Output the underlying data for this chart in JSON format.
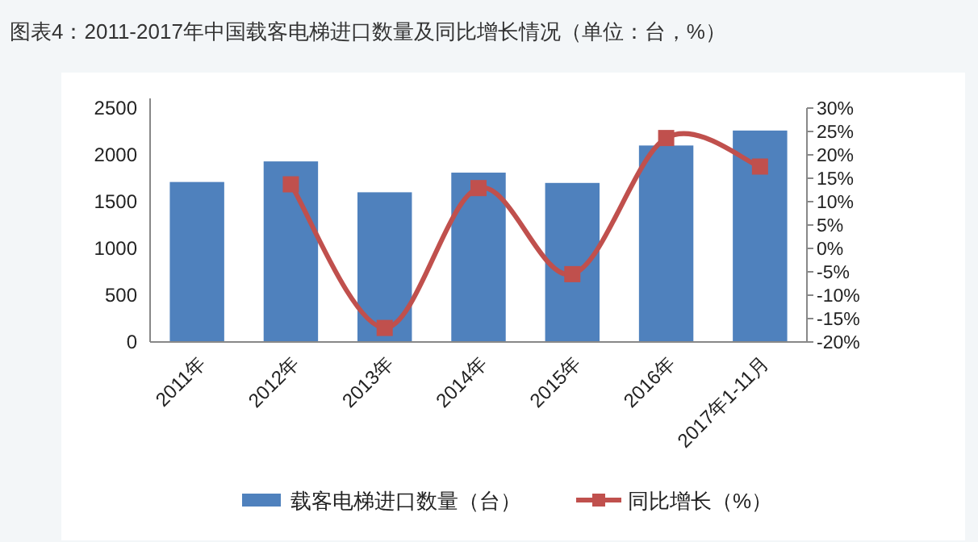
{
  "chart_data": {
    "type": "bar",
    "title": "图表4：2011-2017年中国载客电梯进口数量及同比增长情况（单位：台，%）",
    "categories": [
      "2011年",
      "2012年",
      "2013年",
      "2014年",
      "2015年",
      "2016年",
      "2017年1-11月"
    ],
    "series": [
      {
        "name": "载客电梯进口数量（台）",
        "color": "#4f81bd",
        "values": [
          1710,
          1930,
          1600,
          1810,
          1700,
          2100,
          2260
        ]
      },
      {
        "name": "同比增长（%）",
        "type": "line",
        "axis": "y2",
        "color": "#c0504d",
        "marker": "square",
        "values": [
          null,
          13.7,
          -17.0,
          12.9,
          -5.5,
          23.6,
          17.5
        ]
      }
    ],
    "ylim": [
      0,
      2500
    ],
    "yticks": [
      0,
      500,
      1000,
      1500,
      2000,
      2500
    ],
    "y2lim": [
      -20,
      30
    ],
    "y2ticks": [
      {
        "value": -20,
        "label": "-20%"
      },
      {
        "value": -15,
        "label": "-15%"
      },
      {
        "value": -10,
        "label": "-10%"
      },
      {
        "value": -5,
        "label": "-5%"
      },
      {
        "value": 0,
        "label": "0%"
      },
      {
        "value": 5,
        "label": "5%"
      },
      {
        "value": 10,
        "label": "10%"
      },
      {
        "value": 15,
        "label": "15%"
      },
      {
        "value": 20,
        "label": "20%"
      },
      {
        "value": 25,
        "label": "25%"
      },
      {
        "value": 30,
        "label": "30%"
      }
    ],
    "legend": "bottom",
    "grid": false
  }
}
